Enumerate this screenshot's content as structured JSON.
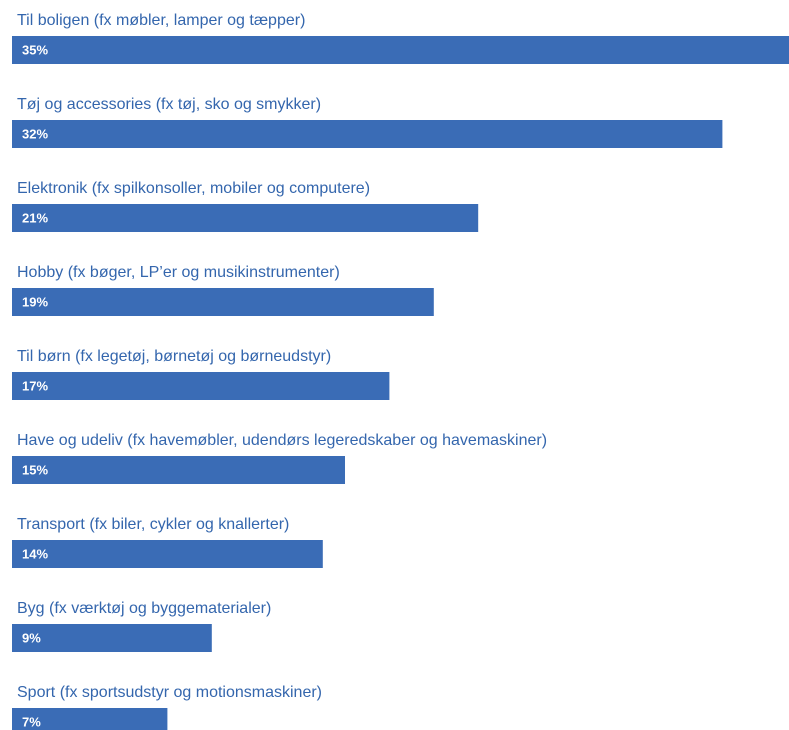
{
  "chart_data": {
    "type": "bar",
    "orientation": "horizontal",
    "color": "#3a6cb6",
    "categories": [
      "Til boligen (fx møbler, lamper og tæpper)",
      "Tøj og accessories (fx tøj, sko og smykker)",
      "Elektronik (fx spilkonsoller, mobiler og computere)",
      "Hobby (fx bøger, LP’er og musikinstrumenter)",
      "Til børn (fx legetøj, børnetøj og børneudstyr)",
      "Have og udeliv (fx havemøbler, udendørs legeredskaber og havemaskiner)",
      "Transport (fx biler, cykler og knallerter)",
      "Byg (fx værktøj og byggematerialer)",
      "Sport (fx sportsudstyr og motionsmaskiner)"
    ],
    "values": [
      35,
      32,
      21,
      19,
      17,
      15,
      14,
      9,
      7
    ],
    "value_labels": [
      "35%",
      "32%",
      "21%",
      "19%",
      "17%",
      "15%",
      "14%",
      "9%",
      "7%"
    ]
  }
}
